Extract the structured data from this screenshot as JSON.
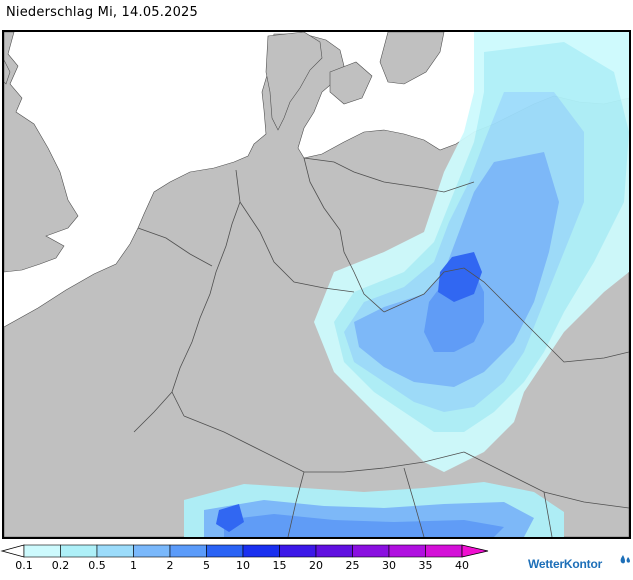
{
  "title": "Niederschlag Mi, 14.05.2025",
  "colors": {
    "sea": "#ffffff",
    "land": "#c0c0c0",
    "border": "#505050",
    "frame": "#000000"
  },
  "legend": {
    "unit_ticks": [
      "0.1",
      "0.2",
      "0.5",
      "1",
      "2",
      "5",
      "10",
      "15",
      "20",
      "25",
      "30",
      "35",
      "40"
    ],
    "colors": [
      "#ffffff",
      "#cdfafd",
      "#aef0f8",
      "#9cdcfb",
      "#7ab8fb",
      "#5b9bf9",
      "#2a63f5",
      "#1a30f0",
      "#3c18e8",
      "#6010e0",
      "#8a10e0",
      "#b010e0",
      "#d410d8",
      "#f010d0"
    ]
  },
  "brand": {
    "name": "WetterKontor"
  }
}
